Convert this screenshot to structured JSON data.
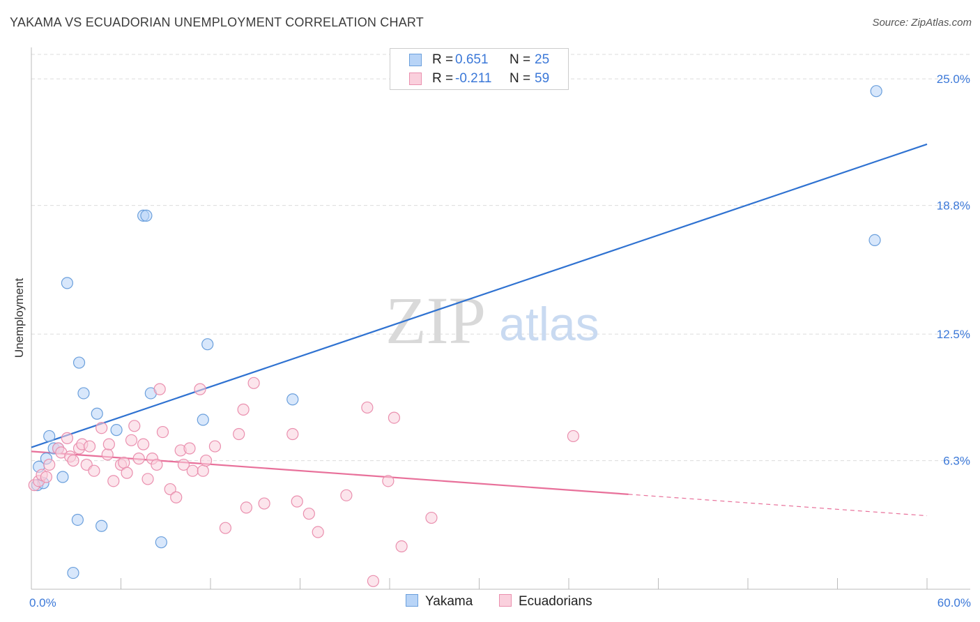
{
  "title": "YAKAMA VS ECUADORIAN UNEMPLOYMENT CORRELATION CHART",
  "source": "Source: ZipAtlas.com",
  "watermark": {
    "zip": "ZIP",
    "atlas": "atlas"
  },
  "legend": {
    "r_label": "R =",
    "n_label": "N =",
    "rows": [
      {
        "r": "0.651",
        "n": "25",
        "color": "#6a9fdc"
      },
      {
        "r": "-0.211",
        "n": "59",
        "color": "#ea8fae"
      }
    ]
  },
  "bottom_legend": {
    "yakama": "Yakama",
    "ecuadorians": "Ecuadorians"
  },
  "chart_data": {
    "type": "scatter",
    "title": "YAKAMA VS ECUADORIAN UNEMPLOYMENT CORRELATION CHART",
    "ylabel": "Unemployment",
    "xlabel": "",
    "xlim": [
      0,
      60
    ],
    "ylim": [
      0,
      26.2
    ],
    "x_tick_labels": [
      "0.0%",
      "60.0%"
    ],
    "y_ticks": [
      6.3,
      12.5,
      18.8,
      25.0
    ],
    "y_tick_labels": [
      "6.3%",
      "12.5%",
      "18.8%",
      "25.0%"
    ],
    "grid": "horizontal dashed",
    "series": [
      {
        "name": "Yakama",
        "color": "#6a9fdc",
        "fill": "#b8d4f7",
        "points": [
          [
            0.4,
            5.1
          ],
          [
            0.5,
            6.0
          ],
          [
            0.8,
            5.2
          ],
          [
            1.0,
            6.4
          ],
          [
            1.2,
            7.5
          ],
          [
            1.5,
            6.9
          ],
          [
            1.8,
            6.9
          ],
          [
            2.1,
            5.5
          ],
          [
            2.4,
            15.0
          ],
          [
            2.8,
            0.8
          ],
          [
            3.1,
            3.4
          ],
          [
            3.2,
            11.1
          ],
          [
            3.5,
            9.6
          ],
          [
            4.4,
            8.6
          ],
          [
            4.7,
            3.1
          ],
          [
            5.7,
            7.8
          ],
          [
            7.5,
            18.3
          ],
          [
            7.7,
            18.3
          ],
          [
            8.0,
            9.6
          ],
          [
            8.7,
            2.3
          ],
          [
            11.5,
            8.3
          ],
          [
            11.8,
            12.0
          ],
          [
            17.5,
            9.3
          ],
          [
            56.6,
            24.4
          ],
          [
            56.5,
            17.1
          ]
        ],
        "trend": {
          "x": [
            0,
            60
          ],
          "y": [
            6.95,
            21.8
          ],
          "style": "solid"
        }
      },
      {
        "name": "Ecuadorians",
        "color": "#ea8fae",
        "fill": "#fad0dd",
        "points": [
          [
            0.2,
            5.1
          ],
          [
            0.5,
            5.3
          ],
          [
            0.7,
            5.6
          ],
          [
            1.0,
            5.5
          ],
          [
            1.2,
            6.1
          ],
          [
            1.8,
            6.9
          ],
          [
            2.0,
            6.7
          ],
          [
            2.4,
            7.4
          ],
          [
            2.6,
            6.5
          ],
          [
            2.8,
            6.3
          ],
          [
            3.2,
            6.9
          ],
          [
            3.4,
            7.1
          ],
          [
            3.7,
            6.1
          ],
          [
            3.9,
            7.0
          ],
          [
            4.2,
            5.8
          ],
          [
            4.7,
            7.9
          ],
          [
            5.1,
            6.6
          ],
          [
            5.2,
            7.1
          ],
          [
            5.5,
            5.3
          ],
          [
            6.0,
            6.1
          ],
          [
            6.2,
            6.2
          ],
          [
            6.4,
            5.7
          ],
          [
            6.7,
            7.3
          ],
          [
            6.9,
            8.0
          ],
          [
            7.2,
            6.4
          ],
          [
            7.5,
            7.1
          ],
          [
            7.8,
            5.4
          ],
          [
            8.1,
            6.4
          ],
          [
            8.4,
            6.1
          ],
          [
            8.6,
            9.8
          ],
          [
            8.8,
            7.7
          ],
          [
            9.3,
            4.9
          ],
          [
            9.7,
            4.5
          ],
          [
            10.0,
            6.8
          ],
          [
            10.2,
            6.1
          ],
          [
            10.6,
            6.9
          ],
          [
            10.8,
            5.8
          ],
          [
            11.3,
            9.8
          ],
          [
            11.5,
            5.8
          ],
          [
            11.7,
            6.3
          ],
          [
            12.3,
            7.0
          ],
          [
            13.0,
            3.0
          ],
          [
            13.9,
            7.6
          ],
          [
            14.2,
            8.8
          ],
          [
            14.9,
            10.1
          ],
          [
            14.4,
            4.0
          ],
          [
            15.6,
            4.2
          ],
          [
            17.5,
            7.6
          ],
          [
            17.8,
            4.3
          ],
          [
            18.6,
            3.7
          ],
          [
            19.2,
            2.8
          ],
          [
            21.1,
            4.6
          ],
          [
            22.5,
            8.9
          ],
          [
            22.9,
            0.4
          ],
          [
            23.9,
            5.3
          ],
          [
            24.3,
            8.4
          ],
          [
            24.8,
            2.1
          ],
          [
            26.8,
            3.5
          ],
          [
            36.3,
            7.5
          ]
        ],
        "trend": {
          "x": [
            0,
            40
          ],
          "y": [
            6.75,
            4.65
          ],
          "style": "solid",
          "dashed_to": [
            60,
            3.6
          ]
        }
      }
    ]
  }
}
